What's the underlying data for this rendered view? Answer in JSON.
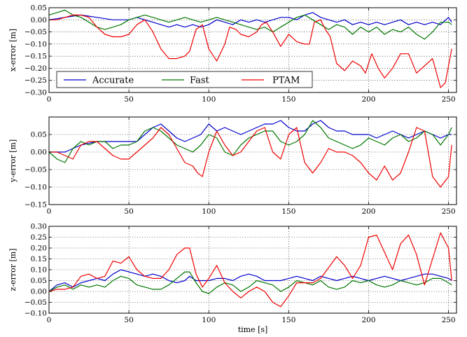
{
  "chart_data": [
    {
      "type": "line",
      "ylabel": "x-error [m]",
      "xlabel": "",
      "xlim": [
        0,
        255
      ],
      "ylim": [
        -0.3,
        0.05
      ],
      "xticks": [
        "0",
        "50",
        "100",
        "150",
        "200",
        "250"
      ],
      "yticks": [
        "0.05",
        "0.00",
        "−0.05",
        "−0.10",
        "−0.15",
        "−0.20",
        "−0.25",
        "−0.30"
      ],
      "grid": true,
      "legend": {
        "placement": "bottom-left",
        "entries": [
          "Accurate",
          "Fast",
          "PTAM"
        ]
      },
      "series": [
        {
          "name": "Accurate",
          "color": "#0000cc",
          "x": [
            0,
            10,
            20,
            30,
            40,
            50,
            55,
            60,
            65,
            70,
            75,
            80,
            85,
            90,
            95,
            100,
            105,
            110,
            115,
            120,
            125,
            130,
            135,
            140,
            145,
            150,
            155,
            160,
            165,
            170,
            175,
            180,
            185,
            190,
            195,
            200,
            205,
            210,
            215,
            220,
            225,
            230,
            235,
            240,
            245,
            250,
            252
          ],
          "y": [
            0.0,
            0.01,
            0.02,
            0.01,
            0.0,
            0.0,
            0.01,
            0.0,
            -0.01,
            -0.02,
            -0.03,
            -0.02,
            -0.03,
            -0.02,
            -0.03,
            -0.02,
            0.0,
            -0.01,
            -0.02,
            0.0,
            -0.01,
            0.0,
            -0.01,
            0.0,
            0.01,
            0.01,
            0.0,
            0.02,
            0.03,
            0.01,
            0.0,
            -0.01,
            0.0,
            -0.02,
            -0.01,
            -0.02,
            -0.01,
            -0.02,
            -0.01,
            0.0,
            -0.02,
            -0.01,
            -0.02,
            -0.01,
            -0.02,
            0.01,
            -0.01
          ]
        },
        {
          "name": "Fast",
          "color": "#007700",
          "x": [
            0,
            5,
            10,
            15,
            20,
            25,
            30,
            35,
            40,
            45,
            50,
            55,
            60,
            65,
            70,
            75,
            80,
            85,
            90,
            95,
            100,
            105,
            110,
            115,
            120,
            125,
            130,
            135,
            140,
            145,
            150,
            155,
            160,
            165,
            170,
            175,
            180,
            185,
            190,
            195,
            200,
            205,
            210,
            215,
            220,
            225,
            230,
            235,
            240,
            245,
            250,
            252
          ],
          "y": [
            0.02,
            0.03,
            0.04,
            0.02,
            0.01,
            -0.01,
            -0.03,
            -0.04,
            -0.03,
            -0.02,
            0.0,
            0.01,
            0.02,
            0.01,
            0.0,
            -0.01,
            0.0,
            0.01,
            0.0,
            -0.01,
            0.0,
            0.01,
            0.0,
            -0.01,
            -0.02,
            -0.03,
            -0.04,
            -0.03,
            -0.05,
            -0.03,
            -0.01,
            0.01,
            0.02,
            0.0,
            -0.02,
            -0.04,
            -0.02,
            -0.03,
            -0.06,
            -0.03,
            -0.05,
            -0.03,
            -0.06,
            -0.04,
            -0.05,
            -0.03,
            -0.06,
            -0.08,
            -0.05,
            -0.01,
            -0.01,
            -0.02
          ]
        },
        {
          "name": "PTAM",
          "color": "#ee0000",
          "x": [
            0,
            5,
            10,
            15,
            20,
            25,
            30,
            35,
            40,
            45,
            50,
            55,
            60,
            65,
            70,
            75,
            80,
            85,
            88,
            92,
            96,
            100,
            105,
            110,
            113,
            117,
            120,
            125,
            130,
            133,
            136,
            140,
            145,
            150,
            155,
            160,
            163,
            166,
            170,
            173,
            176,
            180,
            185,
            190,
            195,
            198,
            202,
            206,
            210,
            215,
            220,
            225,
            230,
            235,
            240,
            245,
            248,
            252
          ],
          "y": [
            0.0,
            0.0,
            0.01,
            0.02,
            0.02,
            0.01,
            -0.03,
            -0.06,
            -0.07,
            -0.07,
            -0.06,
            -0.02,
            0.0,
            -0.05,
            -0.12,
            -0.16,
            -0.16,
            -0.15,
            -0.13,
            -0.04,
            -0.02,
            -0.12,
            -0.17,
            -0.1,
            -0.03,
            -0.04,
            -0.06,
            -0.07,
            -0.05,
            -0.02,
            -0.01,
            -0.05,
            -0.11,
            -0.06,
            -0.09,
            -0.1,
            -0.1,
            -0.01,
            0.0,
            -0.04,
            -0.07,
            -0.18,
            -0.21,
            -0.17,
            -0.19,
            -0.22,
            -0.14,
            -0.2,
            -0.24,
            -0.2,
            -0.14,
            -0.14,
            -0.22,
            -0.19,
            -0.16,
            -0.28,
            -0.26,
            -0.12
          ]
        }
      ]
    },
    {
      "type": "line",
      "ylabel": "y-error [m]",
      "xlabel": "",
      "xlim": [
        0,
        255
      ],
      "ylim": [
        -0.15,
        0.1
      ],
      "xticks": [
        "0",
        "50",
        "100",
        "150",
        "200",
        "250"
      ],
      "yticks": [
        "0.05",
        "0.00",
        "−0.05",
        "−0.10",
        "−0.15"
      ],
      "grid": true,
      "series": [
        {
          "name": "Accurate",
          "color": "#0000cc",
          "x": [
            0,
            10,
            20,
            30,
            40,
            50,
            55,
            60,
            65,
            70,
            75,
            80,
            85,
            90,
            95,
            100,
            105,
            110,
            115,
            120,
            125,
            130,
            135,
            140,
            145,
            150,
            155,
            160,
            165,
            170,
            175,
            180,
            185,
            190,
            195,
            200,
            205,
            210,
            215,
            220,
            225,
            230,
            235,
            240,
            245,
            250,
            252
          ],
          "y": [
            0.0,
            0.0,
            0.02,
            0.03,
            0.03,
            0.03,
            0.03,
            0.05,
            0.07,
            0.08,
            0.06,
            0.04,
            0.03,
            0.04,
            0.05,
            0.08,
            0.06,
            0.07,
            0.06,
            0.05,
            0.06,
            0.07,
            0.08,
            0.08,
            0.09,
            0.07,
            0.06,
            0.06,
            0.08,
            0.09,
            0.07,
            0.06,
            0.06,
            0.05,
            0.05,
            0.05,
            0.04,
            0.05,
            0.06,
            0.05,
            0.04,
            0.05,
            0.06,
            0.05,
            0.04,
            0.05,
            0.05
          ]
        },
        {
          "name": "Fast",
          "color": "#007700",
          "x": [
            0,
            5,
            10,
            15,
            20,
            25,
            30,
            35,
            40,
            45,
            50,
            55,
            60,
            65,
            70,
            75,
            80,
            85,
            90,
            95,
            100,
            105,
            110,
            115,
            120,
            125,
            130,
            135,
            140,
            145,
            150,
            155,
            160,
            165,
            170,
            175,
            180,
            185,
            190,
            195,
            200,
            205,
            210,
            215,
            220,
            225,
            230,
            235,
            240,
            245,
            250,
            252
          ],
          "y": [
            0.0,
            -0.02,
            -0.03,
            0.01,
            0.03,
            0.02,
            0.03,
            0.03,
            0.01,
            0.02,
            0.02,
            0.03,
            0.06,
            0.07,
            0.06,
            0.04,
            0.02,
            0.01,
            0.0,
            0.02,
            0.05,
            0.04,
            0.0,
            -0.01,
            0.02,
            0.04,
            0.05,
            0.06,
            0.06,
            0.03,
            0.02,
            0.03,
            0.05,
            0.09,
            0.07,
            0.04,
            0.03,
            0.02,
            0.01,
            0.02,
            0.04,
            0.03,
            0.02,
            0.04,
            0.05,
            0.03,
            0.04,
            0.06,
            0.05,
            0.02,
            0.05,
            0.07
          ]
        },
        {
          "name": "PTAM",
          "color": "#ee0000",
          "x": [
            0,
            5,
            10,
            15,
            20,
            25,
            30,
            35,
            40,
            45,
            50,
            55,
            60,
            65,
            70,
            75,
            80,
            85,
            90,
            93,
            96,
            100,
            105,
            110,
            115,
            120,
            125,
            130,
            135,
            140,
            145,
            150,
            155,
            160,
            165,
            170,
            175,
            180,
            185,
            190,
            195,
            200,
            205,
            210,
            215,
            220,
            225,
            230,
            235,
            240,
            245,
            250,
            252
          ],
          "y": [
            0.0,
            0.0,
            -0.01,
            -0.02,
            0.02,
            0.03,
            0.03,
            0.01,
            -0.01,
            -0.02,
            -0.02,
            0.0,
            0.02,
            0.04,
            0.07,
            0.05,
            0.01,
            -0.03,
            -0.04,
            -0.06,
            -0.07,
            0.0,
            0.06,
            0.02,
            -0.01,
            0.0,
            0.03,
            0.06,
            0.07,
            0.0,
            -0.02,
            0.05,
            0.07,
            -0.03,
            -0.06,
            -0.03,
            0.01,
            0.0,
            0.0,
            -0.01,
            -0.03,
            -0.06,
            -0.08,
            -0.04,
            -0.08,
            -0.06,
            0.0,
            0.07,
            0.06,
            -0.07,
            -0.1,
            -0.07,
            0.02
          ]
        }
      ]
    },
    {
      "type": "line",
      "ylabel": "z-error [m]",
      "xlabel": "time [s]",
      "xlim": [
        0,
        255
      ],
      "ylim": [
        -0.1,
        0.3
      ],
      "xticks": [
        "0",
        "50",
        "100",
        "150",
        "200",
        "250"
      ],
      "yticks": [
        "0.30",
        "0.25",
        "0.20",
        "0.15",
        "0.10",
        "0.05",
        "0.00",
        "−0.05",
        "−0.10"
      ],
      "grid": true,
      "series": [
        {
          "name": "Accurate",
          "color": "#0000cc",
          "x": [
            0,
            5,
            10,
            15,
            20,
            25,
            30,
            35,
            40,
            45,
            50,
            55,
            60,
            65,
            70,
            75,
            80,
            85,
            88,
            92,
            96,
            100,
            105,
            110,
            115,
            120,
            125,
            130,
            135,
            140,
            145,
            150,
            155,
            160,
            165,
            170,
            175,
            180,
            185,
            190,
            195,
            200,
            205,
            210,
            215,
            220,
            225,
            230,
            235,
            240,
            245,
            250,
            252
          ],
          "y": [
            0.0,
            0.03,
            0.04,
            0.02,
            0.04,
            0.05,
            0.06,
            0.05,
            0.08,
            0.1,
            0.09,
            0.08,
            0.07,
            0.08,
            0.07,
            0.05,
            0.04,
            0.05,
            0.07,
            0.05,
            0.05,
            0.05,
            0.06,
            0.06,
            0.05,
            0.07,
            0.08,
            0.07,
            0.05,
            0.05,
            0.05,
            0.06,
            0.07,
            0.06,
            0.05,
            0.07,
            0.06,
            0.05,
            0.06,
            0.07,
            0.06,
            0.05,
            0.06,
            0.07,
            0.06,
            0.05,
            0.06,
            0.07,
            0.08,
            0.08,
            0.07,
            0.06,
            0.05
          ]
        },
        {
          "name": "Fast",
          "color": "#007700",
          "x": [
            0,
            5,
            10,
            15,
            20,
            25,
            30,
            35,
            40,
            45,
            50,
            55,
            60,
            65,
            70,
            75,
            80,
            85,
            88,
            92,
            96,
            100,
            105,
            110,
            115,
            120,
            125,
            130,
            135,
            140,
            145,
            150,
            155,
            160,
            165,
            170,
            175,
            180,
            185,
            190,
            195,
            200,
            205,
            210,
            215,
            220,
            225,
            230,
            235,
            240,
            245,
            250,
            252
          ],
          "y": [
            0.0,
            0.02,
            0.03,
            0.01,
            0.03,
            0.02,
            0.03,
            0.02,
            0.05,
            0.07,
            0.06,
            0.03,
            0.02,
            0.01,
            0.01,
            0.03,
            0.06,
            0.09,
            0.09,
            0.04,
            0.0,
            -0.01,
            0.02,
            0.04,
            0.03,
            0.0,
            0.02,
            0.05,
            0.04,
            0.03,
            0.0,
            0.02,
            0.05,
            0.04,
            0.03,
            0.05,
            0.02,
            0.01,
            0.02,
            0.05,
            0.04,
            0.05,
            0.03,
            0.02,
            0.03,
            0.05,
            0.04,
            0.03,
            0.04,
            0.06,
            0.06,
            0.04,
            0.03
          ]
        },
        {
          "name": "PTAM",
          "color": "#ee0000",
          "x": [
            0,
            5,
            10,
            15,
            20,
            25,
            30,
            35,
            40,
            45,
            50,
            55,
            60,
            65,
            70,
            75,
            80,
            85,
            88,
            92,
            96,
            100,
            105,
            110,
            115,
            120,
            125,
            130,
            135,
            140,
            145,
            150,
            155,
            160,
            165,
            170,
            175,
            180,
            185,
            190,
            195,
            200,
            205,
            210,
            215,
            220,
            225,
            230,
            235,
            240,
            245,
            250,
            252
          ],
          "y": [
            0.0,
            0.01,
            0.01,
            0.02,
            0.07,
            0.08,
            0.06,
            0.07,
            0.14,
            0.13,
            0.16,
            0.1,
            0.07,
            0.06,
            0.06,
            0.1,
            0.17,
            0.2,
            0.2,
            0.08,
            0.02,
            0.06,
            0.12,
            0.04,
            0.0,
            -0.03,
            0.0,
            0.02,
            0.0,
            -0.05,
            -0.07,
            -0.02,
            0.04,
            0.04,
            0.04,
            0.06,
            0.11,
            0.16,
            0.12,
            0.06,
            0.12,
            0.25,
            0.26,
            0.18,
            0.1,
            0.22,
            0.26,
            0.17,
            0.03,
            0.15,
            0.27,
            0.2,
            0.05
          ]
        }
      ]
    }
  ]
}
